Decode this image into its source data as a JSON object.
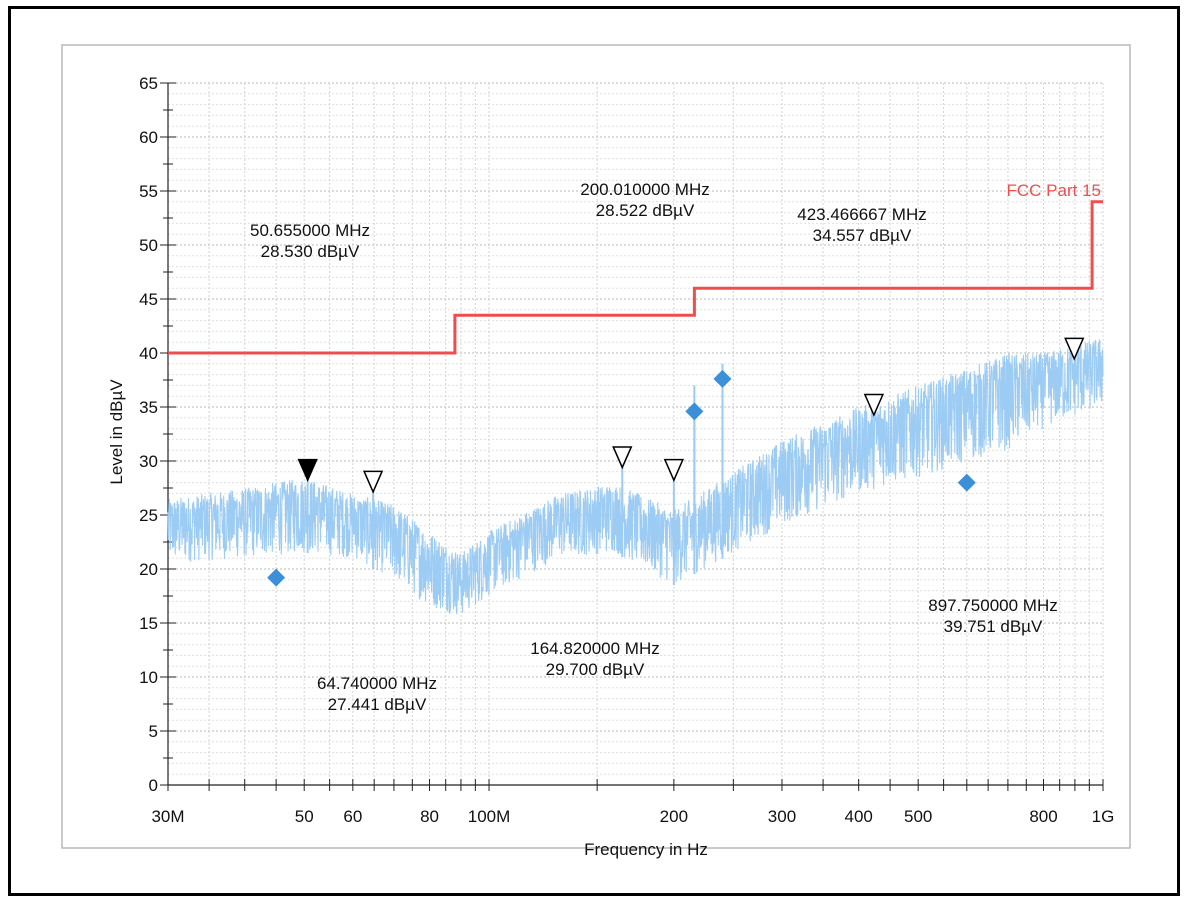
{
  "chart_data": {
    "type": "line",
    "xlabel": "Frequency in Hz",
    "ylabel": "Level in dBµV",
    "x_scale": "log",
    "xlim": [
      30000000,
      1000000000
    ],
    "ylim": [
      0,
      65
    ],
    "grid": true,
    "colors": {
      "limit": "#ee4e4e",
      "trace": "#9ccbf3",
      "quasi_peak": "#3c8fd9",
      "marker_outline": "#000000"
    },
    "x_ticks": [
      {
        "value": 30000000,
        "label": "30M"
      },
      {
        "value": 50000000,
        "label": "50"
      },
      {
        "value": 60000000,
        "label": "60"
      },
      {
        "value": 80000000,
        "label": "80"
      },
      {
        "value": 100000000,
        "label": "100M"
      },
      {
        "value": 200000000,
        "label": "200"
      },
      {
        "value": 300000000,
        "label": "300"
      },
      {
        "value": 400000000,
        "label": "400"
      },
      {
        "value": 500000000,
        "label": "500"
      },
      {
        "value": 800000000,
        "label": "800"
      },
      {
        "value": 1000000000,
        "label": "1G"
      }
    ],
    "y_ticks": [
      0,
      5,
      10,
      15,
      20,
      25,
      30,
      35,
      40,
      45,
      50,
      55,
      60,
      65
    ],
    "limit_line": {
      "name": "FCC Part 15",
      "points": [
        [
          30000000,
          40
        ],
        [
          88000000,
          40
        ],
        [
          88000000,
          43.5
        ],
        [
          216000000,
          43.5
        ],
        [
          216000000,
          46
        ],
        [
          960000000,
          46
        ],
        [
          960000000,
          54
        ],
        [
          1000000000,
          54
        ]
      ]
    },
    "trace_envelope": [
      {
        "freq": 30000000,
        "low": 20.5,
        "high": 26.5
      },
      {
        "freq": 40000000,
        "low": 21.0,
        "high": 27.5
      },
      {
        "freq": 50000000,
        "low": 21.5,
        "high": 28.5
      },
      {
        "freq": 60000000,
        "low": 21.0,
        "high": 27.0
      },
      {
        "freq": 70000000,
        "low": 19.0,
        "high": 26.0
      },
      {
        "freq": 80000000,
        "low": 16.5,
        "high": 23.5
      },
      {
        "freq": 90000000,
        "low": 15.5,
        "high": 21.5
      },
      {
        "freq": 100000000,
        "low": 17.5,
        "high": 23.5
      },
      {
        "freq": 130000000,
        "low": 21.0,
        "high": 27.0
      },
      {
        "freq": 160000000,
        "low": 21.5,
        "high": 28.0
      },
      {
        "freq": 200000000,
        "low": 18.5,
        "high": 25.5
      },
      {
        "freq": 250000000,
        "low": 21.5,
        "high": 29.0
      },
      {
        "freq": 300000000,
        "low": 24.0,
        "high": 32.0
      },
      {
        "freq": 400000000,
        "low": 27.0,
        "high": 35.0
      },
      {
        "freq": 500000000,
        "low": 28.5,
        "high": 37.0
      },
      {
        "freq": 700000000,
        "low": 31.0,
        "high": 40.0
      },
      {
        "freq": 800000000,
        "low": 33.0,
        "high": 40.0
      },
      {
        "freq": 1000000000,
        "low": 35.0,
        "high": 41.5
      }
    ],
    "spikes": [
      {
        "freq": 50655000,
        "level": 28.5
      },
      {
        "freq": 64740000,
        "level": 27.4
      },
      {
        "freq": 164820000,
        "level": 29.7
      },
      {
        "freq": 200010000,
        "level": 28.5
      },
      {
        "freq": 216000000,
        "level": 37.0
      },
      {
        "freq": 240000000,
        "level": 39.0
      }
    ],
    "peak_markers": [
      {
        "freq": 50655000,
        "level": 28.53,
        "filled": true,
        "label_freq": "50.655000 MHz",
        "label_level": "28.530 dBµV"
      },
      {
        "freq": 64740000,
        "level": 27.441,
        "filled": false,
        "label_freq": "64.740000 MHz",
        "label_level": "27.441 dBµV"
      },
      {
        "freq": 164820000,
        "level": 29.7,
        "filled": false,
        "label_freq": "164.820000 MHz",
        "label_level": "29.700 dBµV"
      },
      {
        "freq": 200010000,
        "level": 28.522,
        "filled": false,
        "label_freq": "200.010000 MHz",
        "label_level": "28.522 dBµV"
      },
      {
        "freq": 423466667,
        "level": 34.557,
        "filled": false,
        "label_freq": "423.466667 MHz",
        "label_level": "34.557 dBµV"
      },
      {
        "freq": 897750000,
        "level": 39.751,
        "filled": false,
        "label_freq": "897.750000 MHz",
        "label_level": "39.751 dBµV"
      }
    ],
    "quasi_peak_points": [
      {
        "freq": 45000000,
        "level": 19.2
      },
      {
        "freq": 216000000,
        "level": 34.6
      },
      {
        "freq": 240000000,
        "level": 37.6
      },
      {
        "freq": 600000000,
        "level": 28.0
      }
    ]
  }
}
